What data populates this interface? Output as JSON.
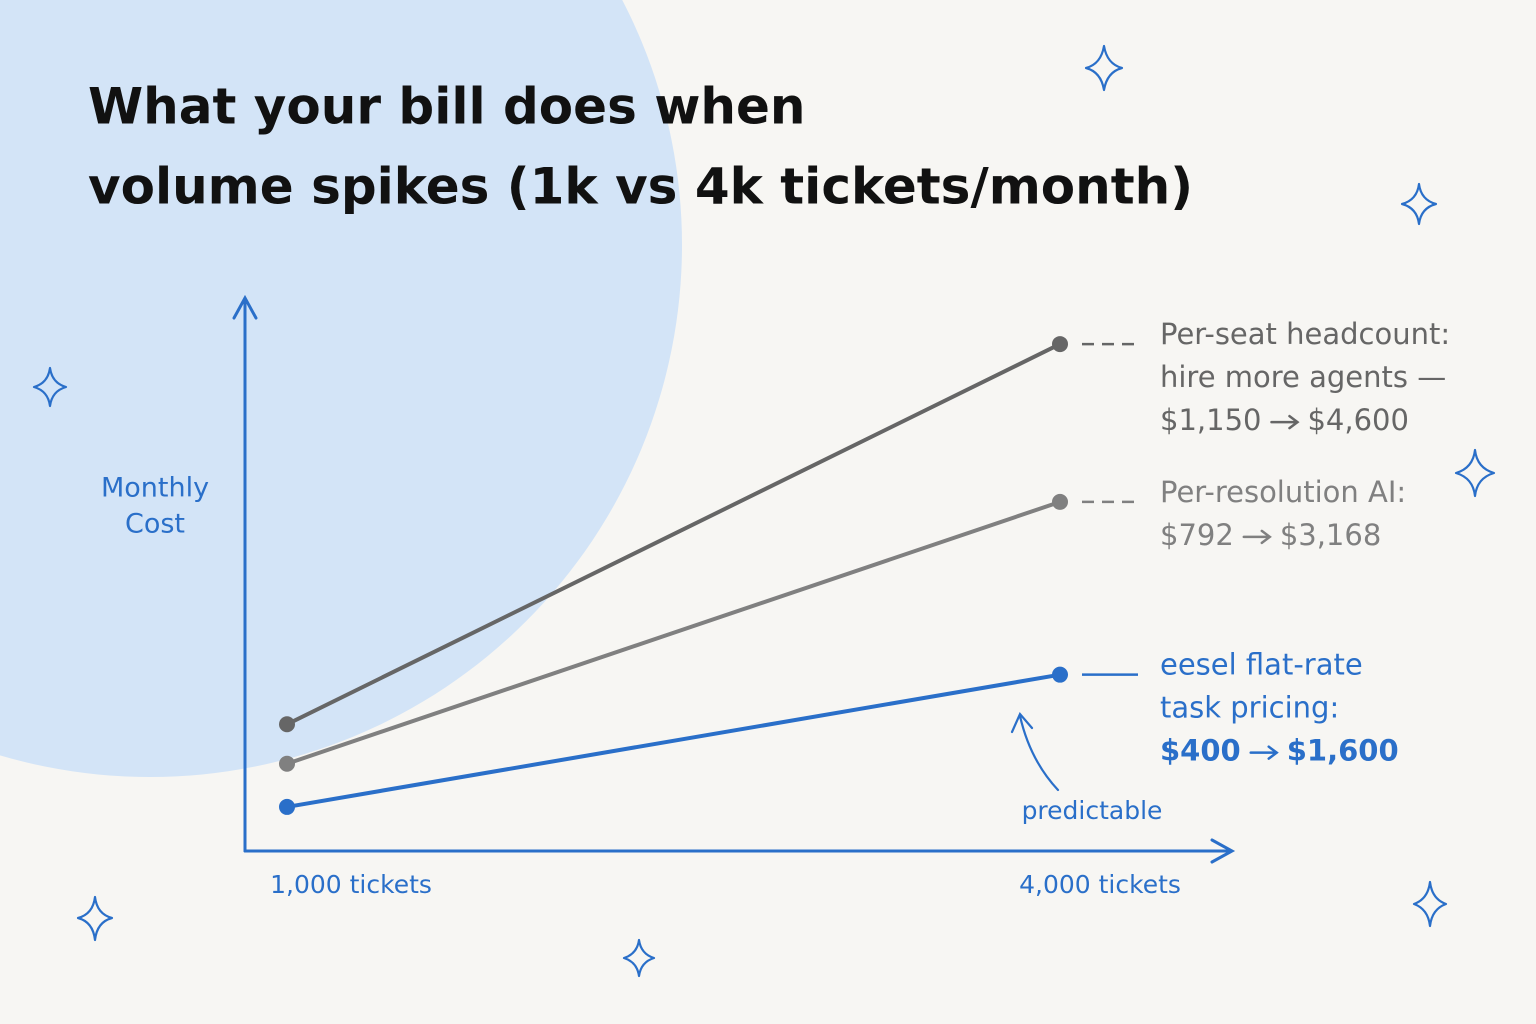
{
  "chart_data": {
    "type": "line",
    "title": [
      "What your bill does when",
      "volume spikes (1k vs 4k tickets/month)"
    ],
    "y_label": [
      "Monthly",
      "Cost"
    ],
    "categories": [
      "1,000 tickets",
      "4,000 tickets"
    ],
    "ylim": [
      0,
      5000
    ],
    "series": [
      {
        "name": [
          "Per-seat headcount:",
          "hire more agents —"
        ],
        "color": "#666666",
        "values": [
          1150,
          4600
        ],
        "value_labels": [
          "$1,150",
          "$4,600"
        ]
      },
      {
        "name": [
          "Per-resolution AI:"
        ],
        "color": "#808080",
        "values": [
          792,
          3168
        ],
        "value_labels": [
          "$792",
          "$3,168"
        ]
      },
      {
        "name": [
          "eesel flat-rate",
          "task pricing:"
        ],
        "color": "#2a6fc9",
        "values": [
          400,
          1600
        ],
        "value_labels": [
          "$400",
          "$1,600"
        ]
      }
    ],
    "annotation": "predictable"
  }
}
